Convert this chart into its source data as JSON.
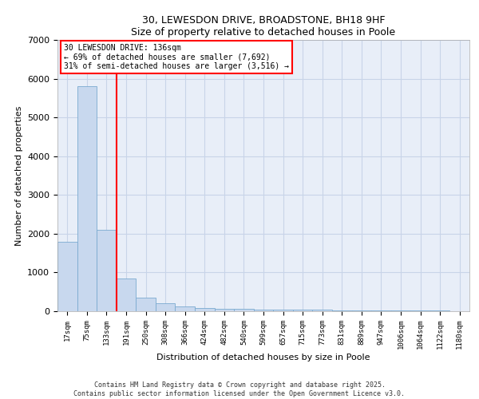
{
  "title": "30, LEWESDON DRIVE, BROADSTONE, BH18 9HF",
  "subtitle": "Size of property relative to detached houses in Poole",
  "xlabel": "Distribution of detached houses by size in Poole",
  "ylabel": "Number of detached properties",
  "bin_labels": [
    "17sqm",
    "75sqm",
    "133sqm",
    "191sqm",
    "250sqm",
    "308sqm",
    "366sqm",
    "424sqm",
    "482sqm",
    "540sqm",
    "599sqm",
    "657sqm",
    "715sqm",
    "773sqm",
    "831sqm",
    "889sqm",
    "947sqm",
    "1006sqm",
    "1064sqm",
    "1122sqm",
    "1180sqm"
  ],
  "bar_heights": [
    1800,
    5800,
    2100,
    850,
    350,
    200,
    120,
    90,
    65,
    55,
    50,
    45,
    40,
    35,
    30,
    25,
    20,
    18,
    15,
    12,
    10
  ],
  "bar_color": "#c8d8ee",
  "bar_edge_color": "#7aaad0",
  "red_line_bin": 2,
  "annotation_title": "30 LEWESDON DRIVE: 136sqm",
  "annotation_line2": "← 69% of detached houses are smaller (7,692)",
  "annotation_line3": "31% of semi-detached houses are larger (3,516) →",
  "ylim": [
    0,
    7000
  ],
  "yticks": [
    0,
    1000,
    2000,
    3000,
    4000,
    5000,
    6000,
    7000
  ],
  "grid_color": "#c8d4e8",
  "background_color": "#e8eef8",
  "footer_line1": "Contains HM Land Registry data © Crown copyright and database right 2025.",
  "footer_line2": "Contains public sector information licensed under the Open Government Licence v3.0."
}
